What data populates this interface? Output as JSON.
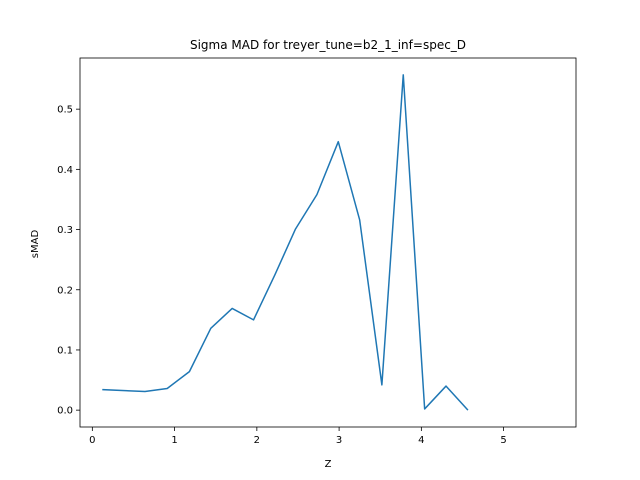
{
  "chart_data": {
    "type": "line",
    "title": "Sigma MAD for treyer_tune=b2_1_inf=spec_D",
    "xlabel": "Z",
    "ylabel": "sMAD",
    "xlim": [
      -0.15,
      5.88
    ],
    "ylim": [
      -0.028,
      0.585
    ],
    "xticks": [
      {
        "value": 0,
        "label": "0"
      },
      {
        "value": 1,
        "label": "1"
      },
      {
        "value": 2,
        "label": "2"
      },
      {
        "value": 3,
        "label": "3"
      },
      {
        "value": 4,
        "label": "4"
      },
      {
        "value": 5,
        "label": "5"
      }
    ],
    "yticks": [
      {
        "value": 0.0,
        "label": "0.0"
      },
      {
        "value": 0.1,
        "label": "0.1"
      },
      {
        "value": 0.2,
        "label": "0.2"
      },
      {
        "value": 0.3,
        "label": "0.3"
      },
      {
        "value": 0.4,
        "label": "0.4"
      },
      {
        "value": 0.5,
        "label": "0.5"
      }
    ],
    "grid": false,
    "legend": "none",
    "color": "#1f77b4",
    "series": [
      {
        "x": [
          0.13,
          0.64,
          0.91,
          1.18,
          1.44,
          1.7,
          1.96,
          2.22,
          2.47,
          2.73,
          2.99,
          3.25,
          3.52,
          3.78,
          4.04,
          4.3,
          4.56
        ],
        "y": [
          0.034,
          0.031,
          0.036,
          0.064,
          0.136,
          0.169,
          0.15,
          0.225,
          0.301,
          0.358,
          0.446,
          0.316,
          0.042,
          0.557,
          0.002,
          0.04,
          0.001
        ]
      }
    ]
  }
}
